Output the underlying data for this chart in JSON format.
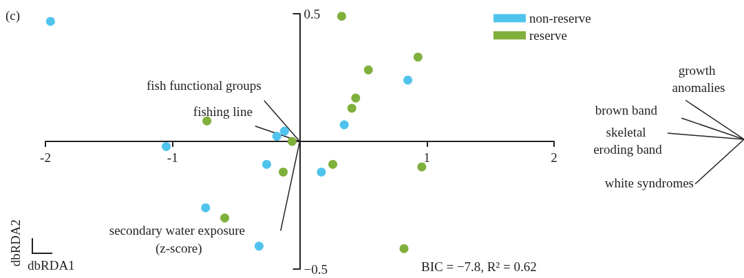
{
  "chart_data": {
    "type": "scatter",
    "xlabel": "dbRDA1",
    "ylabel": "dbRDA2",
    "xlim": [
      -2,
      2
    ],
    "ylim": [
      -0.5,
      0.5
    ],
    "xticks": [
      -2,
      -1,
      1,
      2
    ],
    "yticks": [
      {
        "value": -0.5,
        "label": "−0.5"
      },
      0.5
    ],
    "grid": false,
    "legend": "top right",
    "marker": "circle",
    "series": [
      {
        "name": "non-reserve",
        "color": "#4fc3ec",
        "x": [
          -1.96,
          0.85,
          0.35,
          -0.12,
          -0.18,
          -1.05,
          -0.26,
          0.17,
          -0.74,
          -0.32
        ],
        "values": [
          0.47,
          0.24,
          0.065,
          0.04,
          0.02,
          -0.02,
          -0.09,
          -0.12,
          -0.26,
          -0.41
        ]
      },
      {
        "name": "reserve",
        "color": "#80b03c",
        "x": [
          0.33,
          0.93,
          0.54,
          0.44,
          0.41,
          -0.73,
          -0.06,
          0.26,
          0.96,
          -0.13,
          -0.59,
          0.82
        ],
        "values": [
          0.49,
          0.33,
          0.28,
          0.17,
          0.13,
          0.08,
          0.0,
          -0.09,
          -0.1,
          -0.12,
          -0.3,
          -0.42
        ]
      },
      {
        "type": "line",
        "color": "#231f20",
        "marker": "none",
        "x": [
          0,
          -0.28
        ],
        "values": [
          0,
          0.16
        ]
      },
      {
        "type": "line",
        "color": "#231f20",
        "marker": "none",
        "x": [
          0,
          -0.35
        ],
        "values": [
          0,
          0.06
        ]
      },
      {
        "type": "line",
        "color": "#231f20",
        "marker": "none",
        "x": [
          0,
          -0.15
        ],
        "values": [
          0,
          -0.35
        ]
      }
    ],
    "annotations": [
      "(c)",
      {
        "text": "fish functional groups",
        "x": -0.28,
        "y": 0.16
      },
      {
        "text": "fishing line",
        "x": -0.35,
        "y": 0.06
      },
      {
        "text": "secondary water exposure (z-score)",
        "x": -0.15,
        "y": -0.35
      },
      "growth anomalies",
      "brown band",
      "skeletal eroding band",
      "white syndromes",
      "BIC = −7.8, R² = 0.62"
    ]
  }
}
